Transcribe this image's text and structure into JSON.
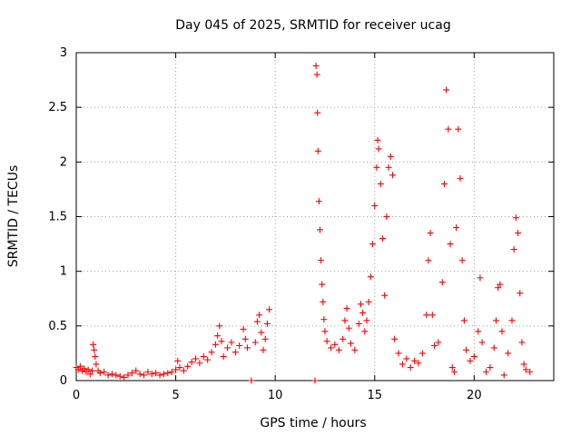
{
  "chart_data": {
    "type": "scatter",
    "title": "Day 045 of 2025, SRMTID for receiver ucag",
    "xlabel": "GPS time / hours",
    "ylabel": "SRMTID / TECUs",
    "xlim": [
      0,
      24
    ],
    "ylim": [
      0,
      3
    ],
    "xticks": [
      0,
      5,
      10,
      15,
      20
    ],
    "xtick_labels": [
      "0",
      "5",
      "10",
      "15",
      "20"
    ],
    "yticks": [
      0,
      0.5,
      1,
      1.5,
      2,
      2.5,
      3
    ],
    "ytick_labels": [
      "0",
      "0.5",
      "1",
      "1.5",
      "2",
      "2.5",
      "3"
    ],
    "grid": true,
    "marker": "+",
    "series": [
      {
        "name": "ucag",
        "color": "#ff0000",
        "points": [
          [
            0.0,
            0.12
          ],
          [
            0.1,
            0.1
          ],
          [
            0.2,
            0.13
          ],
          [
            0.3,
            0.09
          ],
          [
            0.4,
            0.11
          ],
          [
            0.5,
            0.08
          ],
          [
            0.6,
            0.1
          ],
          [
            0.7,
            0.06
          ],
          [
            0.8,
            0.09
          ],
          [
            0.85,
            0.33
          ],
          [
            0.9,
            0.28
          ],
          [
            0.95,
            0.22
          ],
          [
            1.0,
            0.15
          ],
          [
            1.1,
            0.09
          ],
          [
            1.2,
            0.07
          ],
          [
            1.4,
            0.08
          ],
          [
            1.6,
            0.05
          ],
          [
            1.8,
            0.06
          ],
          [
            2.0,
            0.05
          ],
          [
            2.2,
            0.04
          ],
          [
            2.4,
            0.03
          ],
          [
            2.6,
            0.05
          ],
          [
            2.8,
            0.07
          ],
          [
            3.0,
            0.09
          ],
          [
            3.2,
            0.06
          ],
          [
            3.4,
            0.05
          ],
          [
            3.6,
            0.08
          ],
          [
            3.8,
            0.06
          ],
          [
            4.0,
            0.07
          ],
          [
            4.2,
            0.05
          ],
          [
            4.4,
            0.06
          ],
          [
            4.6,
            0.07
          ],
          [
            4.8,
            0.08
          ],
          [
            5.0,
            0.1
          ],
          [
            5.1,
            0.18
          ],
          [
            5.2,
            0.12
          ],
          [
            5.4,
            0.09
          ],
          [
            5.6,
            0.13
          ],
          [
            5.8,
            0.17
          ],
          [
            6.0,
            0.2
          ],
          [
            6.2,
            0.16
          ],
          [
            6.4,
            0.22
          ],
          [
            6.6,
            0.19
          ],
          [
            6.8,
            0.26
          ],
          [
            7.0,
            0.33
          ],
          [
            7.1,
            0.41
          ],
          [
            7.2,
            0.5
          ],
          [
            7.3,
            0.36
          ],
          [
            7.4,
            0.22
          ],
          [
            7.6,
            0.3
          ],
          [
            7.8,
            0.35
          ],
          [
            8.0,
            0.26
          ],
          [
            8.2,
            0.32
          ],
          [
            8.4,
            0.47
          ],
          [
            8.5,
            0.38
          ],
          [
            8.6,
            0.3
          ],
          [
            8.8,
            0.0
          ],
          [
            9.0,
            0.35
          ],
          [
            9.1,
            0.54
          ],
          [
            9.2,
            0.6
          ],
          [
            9.3,
            0.44
          ],
          [
            9.4,
            0.28
          ],
          [
            9.5,
            0.38
          ],
          [
            9.6,
            0.52
          ],
          [
            9.7,
            0.65
          ],
          [
            12.0,
            0.0
          ],
          [
            12.05,
            2.88
          ],
          [
            12.1,
            2.8
          ],
          [
            12.12,
            2.45
          ],
          [
            12.15,
            2.1
          ],
          [
            12.2,
            1.64
          ],
          [
            12.25,
            1.38
          ],
          [
            12.3,
            1.1
          ],
          [
            12.35,
            0.88
          ],
          [
            12.4,
            0.72
          ],
          [
            12.45,
            0.56
          ],
          [
            12.5,
            0.45
          ],
          [
            12.6,
            0.36
          ],
          [
            12.8,
            0.3
          ],
          [
            13.0,
            0.33
          ],
          [
            13.2,
            0.28
          ],
          [
            13.4,
            0.38
          ],
          [
            13.5,
            0.55
          ],
          [
            13.6,
            0.66
          ],
          [
            13.7,
            0.48
          ],
          [
            13.8,
            0.34
          ],
          [
            14.0,
            0.28
          ],
          [
            14.2,
            0.52
          ],
          [
            14.3,
            0.7
          ],
          [
            14.4,
            0.62
          ],
          [
            14.5,
            0.45
          ],
          [
            14.6,
            0.55
          ],
          [
            14.7,
            0.72
          ],
          [
            14.8,
            0.95
          ],
          [
            14.9,
            1.25
          ],
          [
            15.0,
            1.6
          ],
          [
            15.1,
            1.95
          ],
          [
            15.15,
            2.2
          ],
          [
            15.2,
            2.12
          ],
          [
            15.3,
            1.8
          ],
          [
            15.4,
            1.3
          ],
          [
            15.5,
            0.78
          ],
          [
            15.6,
            1.5
          ],
          [
            15.7,
            1.95
          ],
          [
            15.8,
            2.05
          ],
          [
            15.9,
            1.88
          ],
          [
            16.0,
            0.38
          ],
          [
            16.2,
            0.25
          ],
          [
            16.4,
            0.15
          ],
          [
            16.6,
            0.2
          ],
          [
            16.8,
            0.12
          ],
          [
            17.0,
            0.18
          ],
          [
            17.2,
            0.16
          ],
          [
            17.4,
            0.25
          ],
          [
            17.6,
            0.6
          ],
          [
            17.7,
            1.1
          ],
          [
            17.8,
            1.35
          ],
          [
            17.9,
            0.6
          ],
          [
            18.0,
            0.32
          ],
          [
            18.2,
            0.35
          ],
          [
            18.4,
            0.9
          ],
          [
            18.5,
            1.8
          ],
          [
            18.6,
            2.66
          ],
          [
            18.7,
            2.3
          ],
          [
            18.8,
            1.25
          ],
          [
            18.9,
            0.12
          ],
          [
            19.0,
            0.08
          ],
          [
            19.1,
            1.4
          ],
          [
            19.2,
            2.3
          ],
          [
            19.3,
            1.85
          ],
          [
            19.4,
            1.1
          ],
          [
            19.5,
            0.55
          ],
          [
            19.6,
            0.28
          ],
          [
            19.8,
            0.18
          ],
          [
            20.0,
            0.22
          ],
          [
            20.2,
            0.45
          ],
          [
            20.3,
            0.94
          ],
          [
            20.4,
            0.35
          ],
          [
            20.6,
            0.08
          ],
          [
            20.8,
            0.12
          ],
          [
            21.0,
            0.3
          ],
          [
            21.1,
            0.55
          ],
          [
            21.2,
            0.85
          ],
          [
            21.3,
            0.88
          ],
          [
            21.4,
            0.45
          ],
          [
            21.5,
            0.05
          ],
          [
            21.7,
            0.25
          ],
          [
            21.9,
            0.55
          ],
          [
            22.0,
            1.2
          ],
          [
            22.1,
            1.49
          ],
          [
            22.2,
            1.35
          ],
          [
            22.3,
            0.8
          ],
          [
            22.4,
            0.35
          ],
          [
            22.5,
            0.15
          ],
          [
            22.6,
            0.1
          ],
          [
            22.8,
            0.08
          ]
        ]
      }
    ]
  }
}
